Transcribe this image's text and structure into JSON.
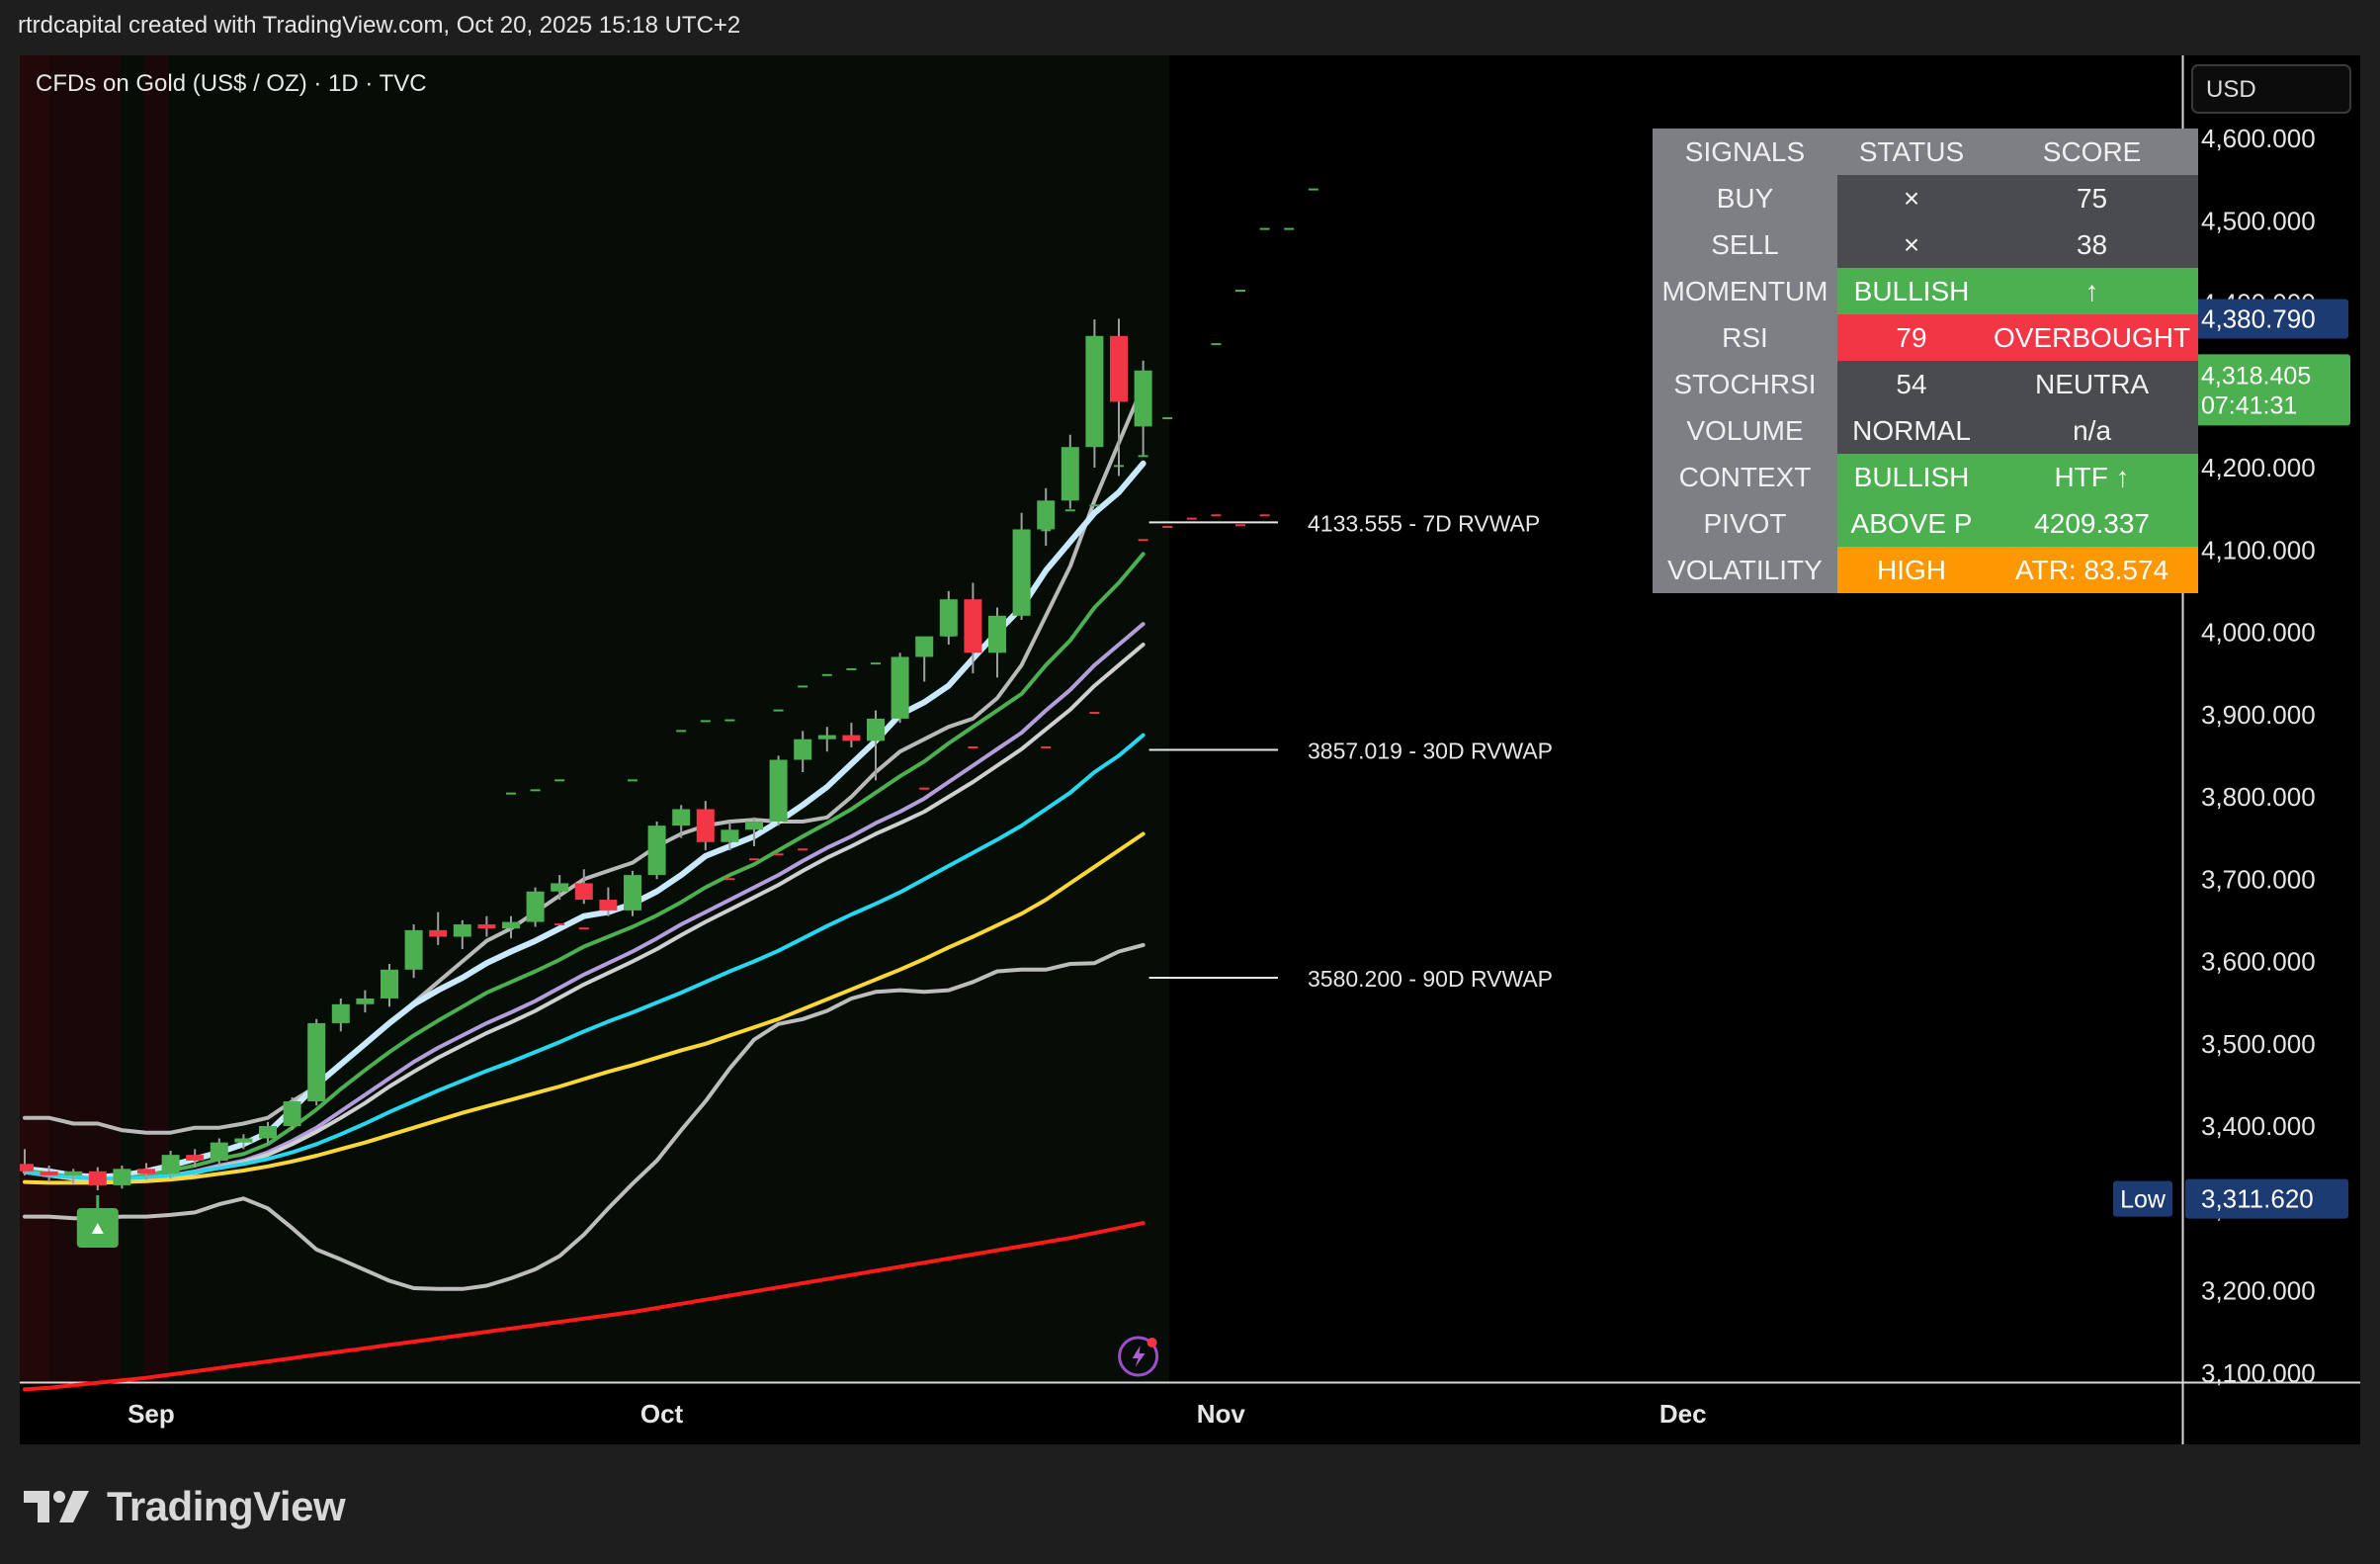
{
  "header": {
    "text": "rtrdcapital created with TradingView.com, Oct 20, 2025 15:18 UTC+2"
  },
  "chart_title": "CFDs on Gold (US$ / OZ) · 1D · TVC",
  "currency": "USD",
  "brand": "TradingView",
  "chart_data": {
    "type": "candlestick",
    "y_ticks": [
      "4,600.000",
      "4,500.000",
      "4,400.000",
      "4,300.000",
      "4,200.000",
      "4,100.000",
      "4,000.000",
      "3,900.000",
      "3,800.000",
      "3,700.000",
      "3,600.000",
      "3,500.000",
      "3,400.000",
      "3,300.000",
      "3,200.000",
      "3,100.000"
    ],
    "y_tick_values": [
      4600,
      4500,
      4400,
      4300,
      4200,
      4100,
      4000,
      3900,
      3800,
      3700,
      3600,
      3500,
      3400,
      3300,
      3200,
      3100
    ],
    "x_labels": [
      "Sep",
      "Oct",
      "Nov",
      "Dec"
    ],
    "x_label_index": [
      5.2,
      26.2,
      49.2,
      68.2
    ],
    "high_badge": {
      "label": "High",
      "value": "4,380.790",
      "price": 4380.79
    },
    "low_badge": {
      "label": "Low",
      "value": "3,311.620",
      "price": 3311.62
    },
    "last_price_badge": {
      "price": "4,318.405",
      "countdown": "07:41:31",
      "price_value": 4318.405
    },
    "vwap_lines": [
      {
        "text": "4133.555 - 7D RVWAP",
        "value": 4133.555
      },
      {
        "text": "3857.019 - 30D RVWAP",
        "value": 3857.019
      },
      {
        "text": "3580.200 - 90D RVWAP",
        "value": 3580.2
      }
    ],
    "candles": [
      [
        3354,
        3372,
        3340,
        3345
      ],
      [
        3345,
        3352,
        3332,
        3340
      ],
      [
        3340,
        3348,
        3330,
        3345
      ],
      [
        3345,
        3350,
        3322,
        3328
      ],
      [
        3328,
        3352,
        3324,
        3348
      ],
      [
        3348,
        3355,
        3335,
        3342
      ],
      [
        3342,
        3370,
        3336,
        3365
      ],
      [
        3365,
        3372,
        3350,
        3358
      ],
      [
        3358,
        3385,
        3352,
        3380
      ],
      [
        3380,
        3390,
        3372,
        3385
      ],
      [
        3385,
        3405,
        3380,
        3400
      ],
      [
        3400,
        3435,
        3395,
        3430
      ],
      [
        3430,
        3530,
        3425,
        3525
      ],
      [
        3525,
        3555,
        3515,
        3548
      ],
      [
        3548,
        3565,
        3538,
        3555
      ],
      [
        3555,
        3597,
        3545,
        3590
      ],
      [
        3590,
        3645,
        3580,
        3638
      ],
      [
        3638,
        3660,
        3620,
        3630
      ],
      [
        3630,
        3650,
        3615,
        3645
      ],
      [
        3645,
        3655,
        3630,
        3640
      ],
      [
        3640,
        3655,
        3628,
        3648
      ],
      [
        3648,
        3690,
        3642,
        3685
      ],
      [
        3685,
        3705,
        3675,
        3695
      ],
      [
        3695,
        3712,
        3670,
        3675
      ],
      [
        3675,
        3690,
        3655,
        3662
      ],
      [
        3662,
        3710,
        3655,
        3705
      ],
      [
        3705,
        3770,
        3700,
        3765
      ],
      [
        3765,
        3790,
        3750,
        3785
      ],
      [
        3785,
        3795,
        3735,
        3745
      ],
      [
        3745,
        3770,
        3735,
        3760
      ],
      [
        3760,
        3775,
        3740,
        3770
      ],
      [
        3770,
        3850,
        3765,
        3845
      ],
      [
        3845,
        3880,
        3830,
        3870
      ],
      [
        3870,
        3885,
        3855,
        3875
      ],
      [
        3875,
        3890,
        3860,
        3868
      ],
      [
        3868,
        3905,
        3820,
        3895
      ],
      [
        3895,
        3975,
        3890,
        3970
      ],
      [
        3970,
        3985,
        3940,
        3995
      ],
      [
        3995,
        4050,
        3985,
        4040
      ],
      [
        4040,
        4060,
        3950,
        3975
      ],
      [
        3975,
        4030,
        3945,
        4020
      ],
      [
        4020,
        4145,
        4015,
        4125
      ],
      [
        4125,
        4175,
        4105,
        4160
      ],
      [
        4160,
        4240,
        4150,
        4225
      ],
      [
        4225,
        4380,
        4200,
        4360
      ],
      [
        4360,
        4381,
        4190,
        4280
      ],
      [
        4250,
        4330,
        4215,
        4318
      ]
    ],
    "series_lines": [
      {
        "name": "line_grey_upper",
        "color": "#b9b9b9",
        "width": 4,
        "values": [
          3410,
          3410,
          3403,
          3403,
          3395,
          3392,
          3392,
          3398,
          3398,
          3403,
          3410,
          3430,
          3448,
          3475,
          3500,
          3525,
          3550,
          3575,
          3600,
          3625,
          3640,
          3660,
          3680,
          3700,
          3710,
          3720,
          3740,
          3755,
          3765,
          3770,
          3772,
          3770,
          3770,
          3775,
          3800,
          3830,
          3855,
          3870,
          3885,
          3895,
          3920,
          3960,
          4020,
          4080,
          4160,
          4230,
          4300
        ]
      },
      {
        "name": "line_light_blue",
        "color": "#c8e9ff",
        "width": 6,
        "values": [
          3348,
          3345,
          3340,
          3338,
          3340,
          3345,
          3352,
          3360,
          3368,
          3378,
          3392,
          3420,
          3450,
          3475,
          3500,
          3525,
          3548,
          3565,
          3580,
          3598,
          3612,
          3625,
          3640,
          3655,
          3660,
          3670,
          3685,
          3705,
          3728,
          3740,
          3752,
          3770,
          3790,
          3812,
          3840,
          3868,
          3900,
          3915,
          3935,
          3968,
          4000,
          4030,
          4075,
          4110,
          4145,
          4170,
          4205
        ]
      },
      {
        "name": "line_green",
        "color": "#4caf50",
        "width": 4,
        "values": [
          3346,
          3342,
          3338,
          3336,
          3336,
          3340,
          3346,
          3352,
          3360,
          3366,
          3378,
          3398,
          3420,
          3445,
          3468,
          3490,
          3510,
          3528,
          3545,
          3562,
          3575,
          3588,
          3602,
          3618,
          3630,
          3642,
          3656,
          3672,
          3690,
          3705,
          3718,
          3735,
          3752,
          3768,
          3785,
          3805,
          3825,
          3843,
          3865,
          3885,
          3905,
          3925,
          3960,
          3990,
          4030,
          4060,
          4095
        ]
      },
      {
        "name": "line_lavender",
        "color": "#b39ddb",
        "width": 4,
        "values": [
          3345,
          3340,
          3336,
          3334,
          3334,
          3336,
          3340,
          3345,
          3352,
          3358,
          3368,
          3382,
          3398,
          3418,
          3438,
          3458,
          3478,
          3495,
          3510,
          3525,
          3538,
          3552,
          3568,
          3584,
          3598,
          3612,
          3628,
          3645,
          3660,
          3675,
          3690,
          3705,
          3722,
          3738,
          3752,
          3768,
          3782,
          3798,
          3818,
          3838,
          3858,
          3878,
          3905,
          3930,
          3960,
          3985,
          4010
        ]
      },
      {
        "name": "line_silver",
        "color": "#d0d0d0",
        "width": 4,
        "values": [
          3344,
          3340,
          3336,
          3333,
          3333,
          3335,
          3338,
          3343,
          3350,
          3356,
          3365,
          3378,
          3393,
          3410,
          3428,
          3448,
          3466,
          3483,
          3498,
          3513,
          3526,
          3540,
          3556,
          3572,
          3586,
          3600,
          3615,
          3632,
          3648,
          3663,
          3678,
          3693,
          3710,
          3726,
          3740,
          3755,
          3768,
          3782,
          3800,
          3818,
          3838,
          3858,
          3882,
          3906,
          3935,
          3960,
          3985
        ]
      },
      {
        "name": "line_cyan",
        "color": "#26d7f0",
        "width": 4,
        "values": [
          3344,
          3340,
          3338,
          3336,
          3336,
          3337,
          3340,
          3344,
          3349,
          3354,
          3360,
          3368,
          3378,
          3390,
          3403,
          3417,
          3430,
          3443,
          3455,
          3467,
          3478,
          3490,
          3502,
          3515,
          3527,
          3538,
          3550,
          3562,
          3575,
          3588,
          3600,
          3613,
          3628,
          3643,
          3657,
          3670,
          3684,
          3700,
          3716,
          3732,
          3748,
          3765,
          3785,
          3805,
          3830,
          3850,
          3875
        ]
      },
      {
        "name": "line_yellow",
        "color": "#fdd835",
        "width": 4,
        "values": [
          3332,
          3331,
          3331,
          3331,
          3332,
          3333,
          3335,
          3338,
          3342,
          3346,
          3351,
          3357,
          3364,
          3372,
          3380,
          3389,
          3398,
          3407,
          3416,
          3424,
          3432,
          3440,
          3448,
          3457,
          3466,
          3474,
          3483,
          3492,
          3500,
          3510,
          3520,
          3530,
          3542,
          3554,
          3566,
          3578,
          3590,
          3603,
          3617,
          3630,
          3644,
          3658,
          3675,
          3695,
          3715,
          3735,
          3755
        ]
      },
      {
        "name": "line_grey_lower",
        "color": "#bdbdbd",
        "width": 4,
        "values": [
          3290,
          3290,
          3288,
          3288,
          3290,
          3290,
          3292,
          3295,
          3305,
          3312,
          3300,
          3276,
          3250,
          3238,
          3225,
          3212,
          3203,
          3202,
          3202,
          3206,
          3215,
          3226,
          3242,
          3268,
          3300,
          3330,
          3358,
          3395,
          3430,
          3470,
          3505,
          3524,
          3530,
          3540,
          3555,
          3563,
          3565,
          3563,
          3565,
          3575,
          3588,
          3590,
          3590,
          3597,
          3598,
          3612,
          3620
        ]
      },
      {
        "name": "line_red",
        "color": "#ff1a1a",
        "width": 4,
        "values": [
          3080,
          3082,
          3085,
          3088,
          3091,
          3094,
          3098,
          3102,
          3106,
          3110,
          3114,
          3118,
          3122,
          3126,
          3130,
          3134,
          3138,
          3142,
          3146,
          3150,
          3154,
          3158,
          3162,
          3166,
          3170,
          3174,
          3179,
          3184,
          3189,
          3194,
          3199,
          3204,
          3209,
          3214,
          3219,
          3224,
          3229,
          3234,
          3239,
          3244,
          3249,
          3254,
          3259,
          3264,
          3270,
          3276,
          3282
        ]
      }
    ],
    "dash_marks_upper": [
      [
        20,
        3804
      ],
      [
        21,
        3808
      ],
      [
        22,
        3820
      ],
      [
        25,
        3820
      ],
      [
        27,
        3880
      ],
      [
        28,
        3892
      ],
      [
        29,
        3893
      ],
      [
        31,
        3905
      ],
      [
        32,
        3934
      ],
      [
        33,
        3948
      ],
      [
        34,
        3955
      ],
      [
        35,
        3962
      ],
      [
        36,
        3962
      ],
      [
        37,
        3976
      ],
      [
        38,
        3996
      ],
      [
        42,
        4124
      ],
      [
        43,
        4148
      ],
      [
        44,
        4154
      ],
      [
        45,
        4202
      ],
      [
        46,
        4214
      ],
      [
        47,
        4260
      ],
      [
        49,
        4350
      ],
      [
        50,
        4415
      ],
      [
        51,
        4490
      ],
      [
        52,
        4490
      ],
      [
        53,
        4538
      ]
    ],
    "dash_marks_lower": [
      [
        22,
        3645
      ],
      [
        23,
        3640
      ],
      [
        29,
        3700
      ],
      [
        30,
        3724
      ],
      [
        31,
        3730
      ],
      [
        32,
        3736
      ],
      [
        37,
        3810
      ],
      [
        39,
        3860
      ],
      [
        42,
        3860
      ],
      [
        44,
        3902
      ],
      [
        46,
        4112
      ],
      [
        47,
        4128
      ],
      [
        48,
        4138
      ],
      [
        49,
        4142
      ],
      [
        50,
        4130
      ],
      [
        51,
        4142
      ]
    ]
  },
  "signals_table": {
    "headers": [
      "SIGNALS",
      "STATUS",
      "SCORE"
    ],
    "rows": [
      {
        "label": "BUY",
        "status": "×",
        "score": "75",
        "status_style": "bg-dark",
        "score_style": "bg-dark"
      },
      {
        "label": "SELL",
        "status": "×",
        "score": "38",
        "status_style": "bg-dark",
        "score_style": "bg-dark"
      },
      {
        "label": "MOMENTUM",
        "status": "BULLISH",
        "score": "↑",
        "status_style": "bg-green",
        "score_style": "bg-green"
      },
      {
        "label": "RSI",
        "status": "79",
        "score": "OVERBOUGHT",
        "status_style": "bg-red",
        "score_style": "bg-red"
      },
      {
        "label": "STOCHRSI",
        "status": "54",
        "score": "NEUTRA",
        "status_style": "bg-grey",
        "score_style": "bg-grey"
      },
      {
        "label": "VOLUME",
        "status": "NORMAL",
        "score": "n/a",
        "status_style": "bg-grey",
        "score_style": "bg-grey"
      },
      {
        "label": "CONTEXT",
        "status": "BULLISH",
        "score": "HTF ↑",
        "status_style": "bg-green",
        "score_style": "bg-green"
      },
      {
        "label": "PIVOT",
        "status": "ABOVE P",
        "score": "4209.337",
        "status_style": "bg-green",
        "score_style": "bg-green"
      },
      {
        "label": "VOLATILITY",
        "status": "HIGH",
        "score": "ATR: 83.574",
        "status_style": "bg-orange",
        "score_style": "bg-orange"
      }
    ]
  }
}
